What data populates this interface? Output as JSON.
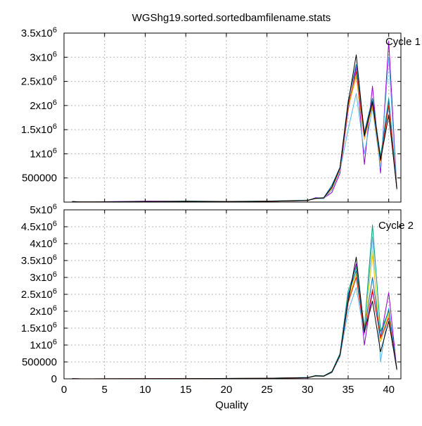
{
  "title": "WGShg19.sorted.sortedbamfilename.stats",
  "chart_data": [
    {
      "type": "line",
      "panel_label": "Cycle 1",
      "xlabel": "",
      "ylabel": "",
      "xlim": [
        0,
        41.5
      ],
      "ylim": [
        0,
        3500000
      ],
      "grid": true,
      "x_ticks": [
        0,
        5,
        10,
        15,
        20,
        25,
        30,
        35,
        40
      ],
      "y_ticks": [
        {
          "value": 0,
          "label": ""
        },
        {
          "value": 500000,
          "label": "500000"
        },
        {
          "value": 1000000,
          "label": "1x10",
          "exp": "6"
        },
        {
          "value": 1500000,
          "label": "1.5x10",
          "exp": "6"
        },
        {
          "value": 2000000,
          "label": "2x10",
          "exp": "6"
        },
        {
          "value": 2500000,
          "label": "2.5x10",
          "exp": "6"
        },
        {
          "value": 3000000,
          "label": "3x10",
          "exp": "6"
        },
        {
          "value": 3500000,
          "label": "3.5x10",
          "exp": "6"
        }
      ],
      "x": [
        1,
        2,
        10,
        15,
        20,
        25,
        30,
        31,
        32,
        33,
        34,
        35,
        36,
        37,
        38,
        39,
        40,
        41
      ],
      "series": [
        {
          "color": "#9400d3",
          "values": [
            10000,
            2000,
            20000,
            15000,
            12000,
            18000,
            30000,
            90000,
            80000,
            200000,
            600000,
            1900000,
            2800000,
            780000,
            2400000,
            600000,
            3330000,
            280000
          ]
        },
        {
          "color": "#009e73",
          "values": [
            15000,
            3000,
            10000,
            20000,
            15000,
            20000,
            40000,
            80000,
            90000,
            300000,
            700000,
            2000000,
            2700000,
            1400000,
            2100000,
            950000,
            2150000,
            300000
          ]
        },
        {
          "color": "#56b4e9",
          "values": [
            8000,
            2000,
            8000,
            14000,
            10000,
            15000,
            35000,
            70000,
            70000,
            250000,
            650000,
            1500000,
            2250000,
            1000000,
            1950000,
            700000,
            3000000,
            250000
          ]
        },
        {
          "color": "#e69f00",
          "values": [
            9000,
            2500,
            9000,
            16000,
            11000,
            16000,
            33000,
            75000,
            85000,
            280000,
            680000,
            1950000,
            2600000,
            1300000,
            2000000,
            800000,
            2000000,
            270000
          ]
        },
        {
          "color": "#f0e442",
          "values": [
            9500,
            2500,
            9500,
            16000,
            11000,
            17000,
            34000,
            78000,
            88000,
            290000,
            690000,
            1980000,
            2650000,
            1320000,
            2050000,
            820000,
            2050000,
            275000
          ]
        },
        {
          "color": "#0072b2",
          "values": [
            11000,
            2600,
            10000,
            17000,
            12000,
            17000,
            36000,
            82000,
            92000,
            350000,
            720000,
            2100000,
            2850000,
            1450000,
            2150000,
            900000,
            2100000,
            285000
          ]
        },
        {
          "color": "#e51e10",
          "values": [
            10000,
            2400,
            9000,
            15000,
            11000,
            16000,
            33000,
            77000,
            86000,
            300000,
            700000,
            2000000,
            2700000,
            1350000,
            2050000,
            850000,
            2000000,
            275000
          ]
        },
        {
          "color": "#000000",
          "values": [
            10500,
            2500,
            9500,
            16000,
            11500,
            16500,
            34000,
            79000,
            87000,
            310000,
            710000,
            2050000,
            3050000,
            1380000,
            2080000,
            870000,
            1800000,
            280000
          ]
        }
      ]
    },
    {
      "type": "line",
      "panel_label": "Cycle 2",
      "xlabel": "Quality",
      "ylabel": "",
      "xlim": [
        0,
        41.5
      ],
      "ylim": [
        0,
        5000000
      ],
      "grid": true,
      "x_ticks": [
        0,
        5,
        10,
        15,
        20,
        25,
        30,
        35,
        40
      ],
      "y_ticks": [
        {
          "value": 0,
          "label": "0"
        },
        {
          "value": 500000,
          "label": "500000"
        },
        {
          "value": 1000000,
          "label": "1x10",
          "exp": "6"
        },
        {
          "value": 1500000,
          "label": "1.5x10",
          "exp": "6"
        },
        {
          "value": 2000000,
          "label": "2x10",
          "exp": "6"
        },
        {
          "value": 2500000,
          "label": "2.5x10",
          "exp": "6"
        },
        {
          "value": 3000000,
          "label": "3x10",
          "exp": "6"
        },
        {
          "value": 3500000,
          "label": "3.5x10",
          "exp": "6"
        },
        {
          "value": 4000000,
          "label": "4x10",
          "exp": "6"
        },
        {
          "value": 4500000,
          "label": "4.5x10",
          "exp": "6"
        },
        {
          "value": 5000000,
          "label": "5x10",
          "exp": "6"
        }
      ],
      "x": [
        1,
        2,
        18,
        20,
        25,
        30,
        31,
        32,
        33,
        34,
        35,
        36,
        37,
        38,
        39,
        40,
        41
      ],
      "series": [
        {
          "color": "#9400d3",
          "values": [
            5000,
            1000,
            8000,
            10000,
            15000,
            30000,
            90000,
            80000,
            200000,
            700000,
            2400000,
            3400000,
            1000000,
            2600000,
            1200000,
            2550000,
            280000
          ]
        },
        {
          "color": "#009e73",
          "values": [
            5000,
            1000,
            9000,
            12000,
            17000,
            40000,
            100000,
            90000,
            220000,
            750000,
            2600000,
            3300000,
            1500000,
            4550000,
            1400000,
            2000000,
            300000
          ]
        },
        {
          "color": "#56b4e9",
          "values": [
            4000,
            1000,
            7000,
            9000,
            14000,
            35000,
            80000,
            70000,
            180000,
            650000,
            2000000,
            2700000,
            1300000,
            4200000,
            500000,
            2100000,
            250000
          ]
        },
        {
          "color": "#e69f00",
          "values": [
            4500,
            1000,
            8000,
            10000,
            15000,
            33000,
            85000,
            78000,
            200000,
            700000,
            2300000,
            3100000,
            1400000,
            3700000,
            1100000,
            1900000,
            270000
          ]
        },
        {
          "color": "#f0e442",
          "values": [
            4500,
            1000,
            8000,
            10000,
            15000,
            34000,
            86000,
            80000,
            205000,
            710000,
            2350000,
            3150000,
            1420000,
            3800000,
            1150000,
            1950000,
            275000
          ]
        },
        {
          "color": "#0072b2",
          "values": [
            5000,
            1000,
            8500,
            11000,
            16000,
            36000,
            92000,
            84000,
            210000,
            720000,
            2500000,
            3200000,
            1450000,
            3000000,
            1250000,
            2050000,
            285000
          ]
        },
        {
          "color": "#e51e10",
          "values": [
            7000,
            1500,
            8000,
            10000,
            15000,
            33000,
            88000,
            79000,
            200000,
            700000,
            2250000,
            3000000,
            1350000,
            2650000,
            1200000,
            1800000,
            275000
          ]
        },
        {
          "color": "#000000",
          "values": [
            4800,
            1000,
            8200,
            10500,
            15500,
            34000,
            87000,
            80000,
            205000,
            705000,
            2300000,
            3600000,
            1380000,
            2300000,
            800000,
            1700000,
            280000
          ]
        }
      ]
    }
  ]
}
